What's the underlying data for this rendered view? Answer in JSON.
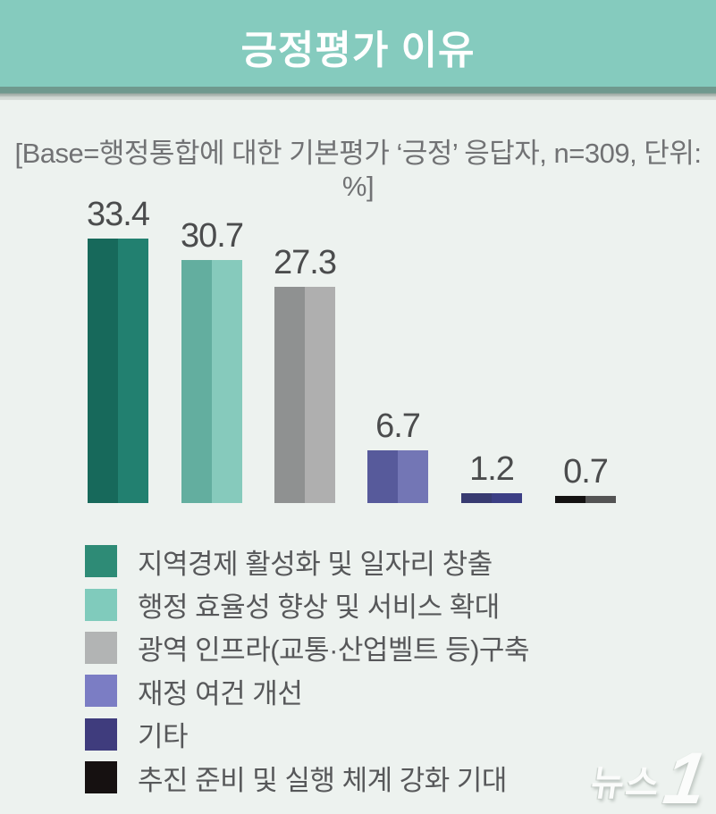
{
  "header": {
    "title": "긍정평가 이유",
    "background_color": "#85cbbe",
    "title_color": "#ffffff"
  },
  "base_note": "[Base=행정통합에 대한 기본평가 ‘긍정’ 응답자, n=309, 단위: %]",
  "chart_data": {
    "type": "bar",
    "title": "긍정평가 이유",
    "unit": "%",
    "n_base": 309,
    "categories": [
      "지역경제 활성화 및 일자리 창출",
      "행정 효율성 향상 및 서비스 확대",
      "광역 인프라(교통·산업벨트 등)구축",
      "재정 여건 개선",
      "기타",
      "추진 준비 및 실행 체계 강화 기대"
    ],
    "values": [
      33.4,
      30.7,
      27.3,
      6.7,
      1.2,
      0.7
    ],
    "value_labels": [
      "33.4",
      "30.7",
      "27.3",
      "6.7",
      "1.2",
      "0.7"
    ],
    "ylim": [
      0,
      35
    ],
    "grid": false,
    "legend_position": "bottom",
    "bar_colors": [
      {
        "left": "#17695b",
        "right": "#228070"
      },
      {
        "left": "#63ae9f",
        "right": "#86cabc"
      },
      {
        "left": "#8f9191",
        "right": "#afafaf"
      },
      {
        "left": "#575a9b",
        "right": "#7376b5"
      },
      {
        "left": "#383b71",
        "right": "#3c3f85"
      },
      {
        "left": "#141212",
        "right": "#545454"
      }
    ],
    "value_label_color": "#4b4c4d"
  },
  "legend": {
    "items": [
      {
        "label": "지역경제 활성화 및 일자리 창출",
        "color": "#2e8b76"
      },
      {
        "label": "행정 효율성 향상 및 서비스 확대",
        "color": "#80cbbc"
      },
      {
        "label": "광역 인프라(교통·산업벨트 등)구축",
        "color": "#b2b4b4"
      },
      {
        "label": "재정 여건 개선",
        "color": "#7b7dc4"
      },
      {
        "label": "기타",
        "color": "#3f3c7d"
      },
      {
        "label": "추진 준비 및 실행 체계 강화 기대",
        "color": "#161111"
      }
    ]
  },
  "watermark": {
    "text": "뉴스",
    "numeral": "1"
  }
}
